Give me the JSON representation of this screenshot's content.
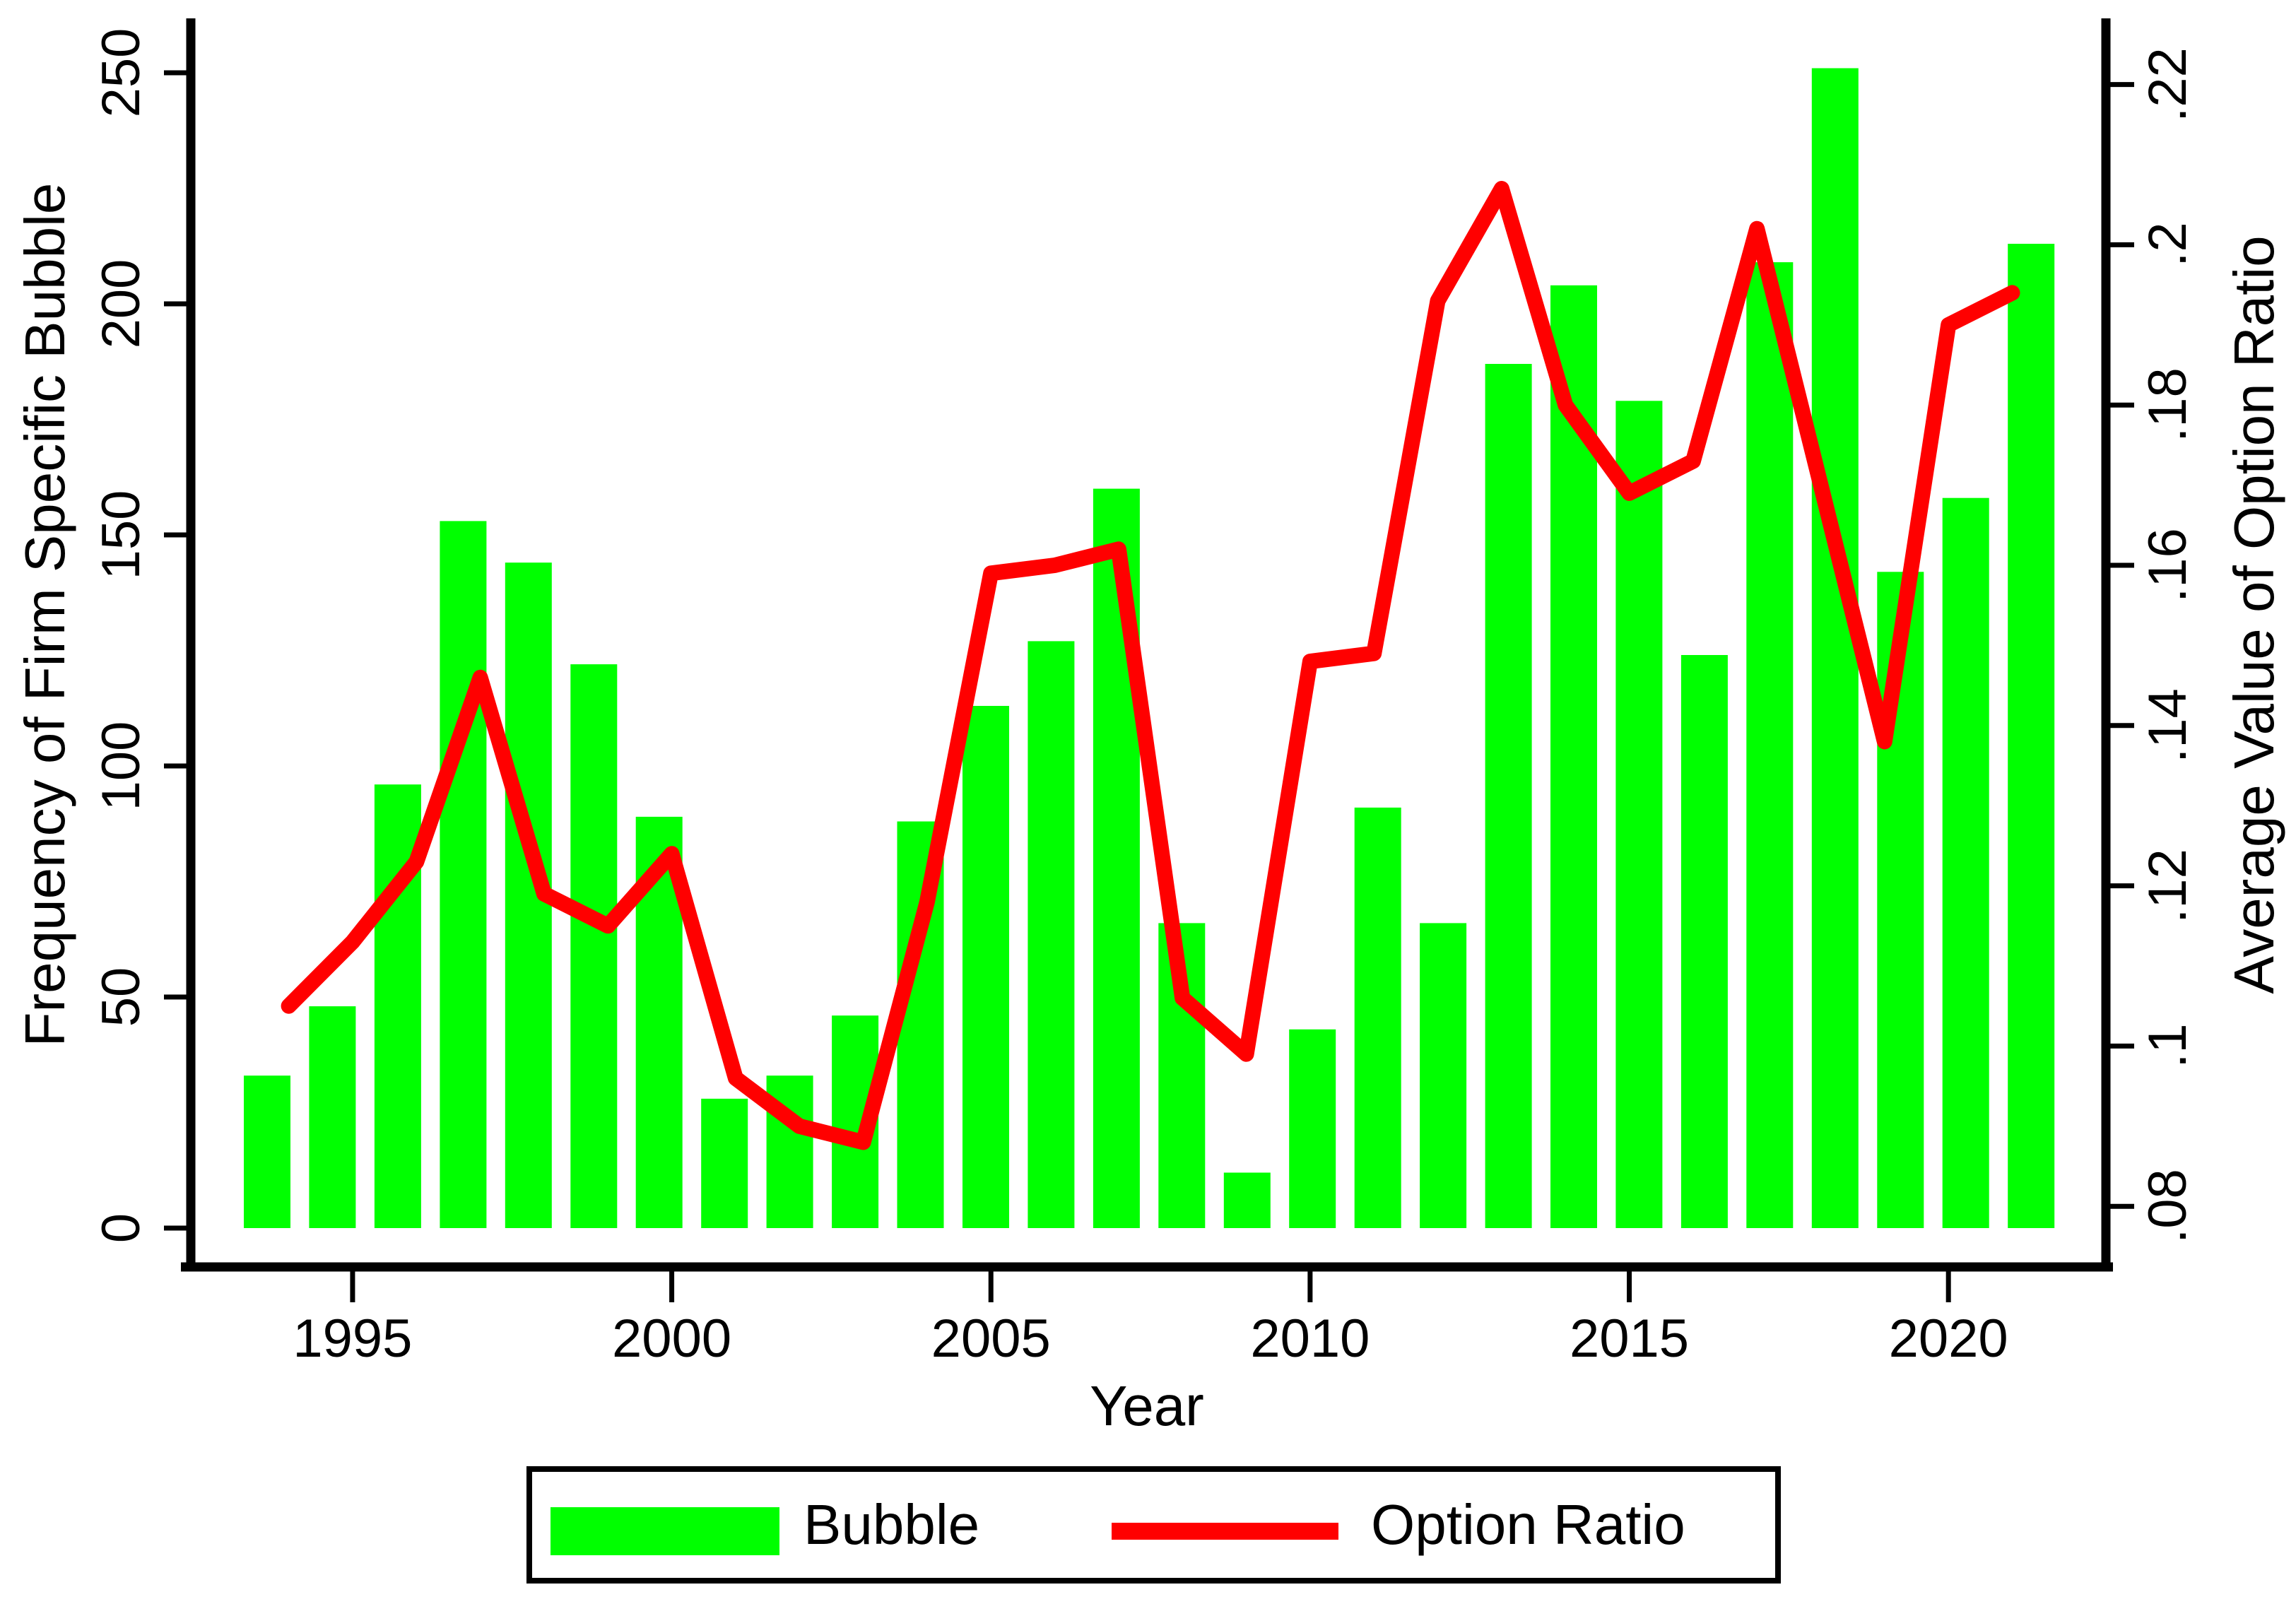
{
  "chart_data": {
    "type": "bar+line",
    "categories": [
      1994,
      1995,
      1996,
      1997,
      1998,
      1999,
      2000,
      2001,
      2002,
      2003,
      2004,
      2005,
      2006,
      2007,
      2008,
      2009,
      2010,
      2011,
      2012,
      2013,
      2014,
      2015,
      2016,
      2017,
      2018,
      2019,
      2020,
      2021
    ],
    "series": [
      {
        "name": "Bubble",
        "type": "bar",
        "axis": "left",
        "color": "#00FF00",
        "values": [
          33,
          48,
          96,
          153,
          144,
          122,
          89,
          28,
          33,
          46,
          88,
          113,
          127,
          160,
          66,
          12,
          43,
          91,
          66,
          187,
          204,
          179,
          124,
          209,
          251,
          142,
          158,
          213
        ]
      },
      {
        "name": "Option Ratio",
        "type": "line",
        "axis": "right",
        "color": "#FF0000",
        "values": [
          0.105,
          0.113,
          0.123,
          0.146,
          0.119,
          0.115,
          0.124,
          0.096,
          0.09,
          0.088,
          0.118,
          0.159,
          0.16,
          0.162,
          0.106,
          0.099,
          0.148,
          0.149,
          0.193,
          0.207,
          0.18,
          0.169,
          0.173,
          0.202,
          0.17,
          0.138,
          0.19,
          0.194
        ]
      }
    ],
    "left_axis": {
      "title": "Frequency of Firm Specific Bubble",
      "tick_labels": [
        "0",
        "50",
        "100",
        "150",
        "200",
        "250"
      ],
      "tick_values": [
        0,
        50,
        100,
        150,
        200,
        250
      ],
      "range": [
        0,
        250
      ]
    },
    "right_axis": {
      "title": "Average Value of Option Ratio",
      "tick_labels": [
        ".08",
        ".1",
        ".12",
        ".14",
        ".16",
        ".18",
        ".2",
        ".22"
      ],
      "tick_values": [
        0.08,
        0.1,
        0.12,
        0.14,
        0.16,
        0.18,
        0.2,
        0.22
      ],
      "range": [
        0.08,
        0.22
      ]
    },
    "x_axis": {
      "title": "Year",
      "tick_labels": [
        "1995",
        "2000",
        "2005",
        "2010",
        "2015",
        "2020"
      ],
      "tick_values": [
        1995,
        2000,
        2005,
        2010,
        2015,
        2020
      ]
    },
    "legend": {
      "items": [
        {
          "label": "Bubble",
          "swatch": "bar",
          "color": "#00FF00"
        },
        {
          "label": "Option Ratio",
          "swatch": "line",
          "color": "#FF0000"
        }
      ]
    },
    "colors": {
      "bar": "#00FF00",
      "line": "#FF0000",
      "axis": "#000000",
      "background": "#FFFFFF"
    },
    "grid": "off",
    "legend_position": "bottom"
  }
}
